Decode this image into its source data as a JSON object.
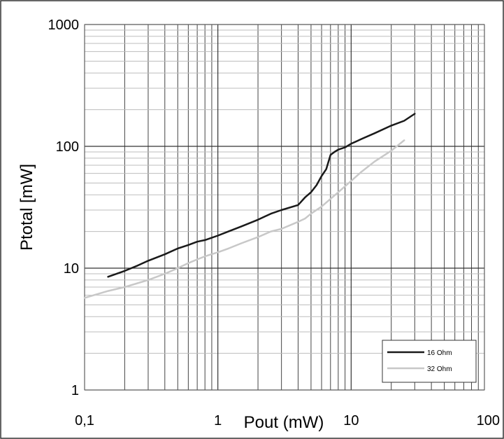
{
  "chart_data": {
    "type": "line",
    "xlabel": "Pout (mW)",
    "ylabel": "Ptotal [mW]",
    "x_scale": "log",
    "y_scale": "log",
    "xlim": [
      0.1,
      100
    ],
    "ylim": [
      1,
      1000
    ],
    "x_ticks": [
      {
        "value": 0.1,
        "label": "0,1"
      },
      {
        "value": 1,
        "label": "1"
      },
      {
        "value": 10,
        "label": "10"
      },
      {
        "value": 100,
        "label": "100"
      }
    ],
    "y_ticks": [
      {
        "value": 1,
        "label": "1"
      },
      {
        "value": 10,
        "label": "10"
      },
      {
        "value": 100,
        "label": "100"
      },
      {
        "value": 1000,
        "label": "1000"
      }
    ],
    "grid": true,
    "legend_position": "bottom-right",
    "series": [
      {
        "name": "16 Ohm",
        "color": "#1a1a1a",
        "x": [
          0.15,
          0.2,
          0.25,
          0.3,
          0.4,
          0.5,
          0.6,
          0.7,
          0.8,
          1.0,
          1.2,
          1.5,
          2.0,
          2.5,
          3.0,
          4.0,
          4.5,
          5.0,
          5.5,
          6.0,
          6.5,
          7.0,
          7.5,
          8.0,
          9.0,
          10.0,
          12.0,
          15.0,
          20.0,
          25.0,
          30.0
        ],
        "y": [
          8.5,
          9.5,
          10.5,
          11.5,
          13.0,
          14.5,
          15.5,
          16.5,
          17.0,
          18.5,
          20.0,
          22.0,
          25.0,
          28.0,
          30.0,
          33.0,
          38.0,
          42.0,
          48.0,
          57.0,
          65.0,
          85.0,
          90.0,
          94.0,
          98.0,
          105.0,
          115.0,
          128.0,
          148.0,
          162.0,
          185.0
        ]
      },
      {
        "name": "32 Ohm",
        "color": "#c8c8c8",
        "x": [
          0.1,
          0.15,
          0.2,
          0.3,
          0.4,
          0.5,
          0.6,
          0.7,
          0.8,
          1.0,
          1.2,
          1.5,
          2.0,
          2.5,
          3.0,
          4.0,
          4.5,
          5.0,
          6.0,
          7.0,
          8.0,
          10.0,
          12.0,
          15.0,
          20.0,
          25.0
        ],
        "y": [
          5.7,
          6.5,
          7.0,
          8.0,
          9.0,
          10.0,
          11.0,
          11.8,
          12.5,
          13.5,
          14.5,
          16.0,
          18.0,
          20.0,
          21.0,
          24.0,
          25.5,
          28.0,
          32.0,
          37.0,
          42.0,
          52.0,
          62.0,
          75.0,
          92.0,
          112.0
        ]
      }
    ]
  }
}
